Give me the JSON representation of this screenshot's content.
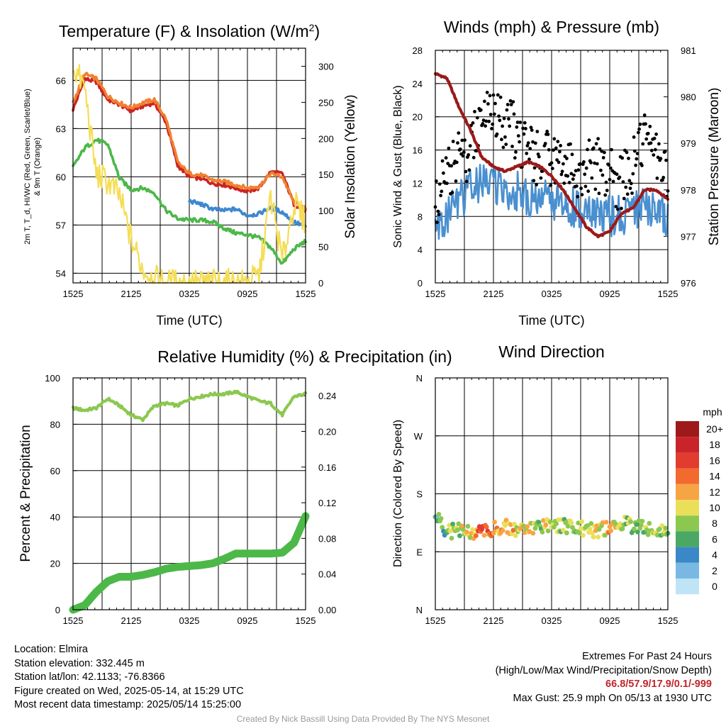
{
  "chart_data": [
    {
      "type": "line",
      "title": "Temperature (F) & Insolation (W/m²)",
      "xlabel": "Time (UTC)",
      "ylabel_lines": [
        "2m T, T_d, HI/WC (Red, Green, Scarlet/Blue)",
        "& 9m T (Orange)"
      ],
      "ylabel2": "Solar Insolation (Yellow)",
      "x_ticks": [
        "1525",
        "2125",
        "0325",
        "0925",
        "1525"
      ],
      "y_ticks": [
        "54",
        "57",
        "60",
        "63",
        "66"
      ],
      "y2_ticks": [
        "0",
        "50",
        "100",
        "150",
        "200",
        "250",
        "300"
      ],
      "ylim": [
        53.4,
        68.0
      ],
      "y2lim": [
        0,
        325
      ],
      "series": [
        {
          "name": "2m T",
          "color": "#cc2222",
          "values": [
            64.2,
            66.1,
            65.9,
            64.8,
            64.5,
            64.1,
            64.4,
            64.6,
            63.4,
            60.7,
            60.0,
            59.9,
            59.6,
            59.5,
            59.3,
            59.1,
            59.3,
            60.3,
            60.2,
            58.3,
            57.9
          ]
        },
        {
          "name": "9m T",
          "color": "#f08030",
          "values": [
            64.6,
            66.4,
            66.1,
            65.0,
            64.6,
            64.3,
            64.6,
            64.8,
            63.6,
            60.9,
            60.2,
            60.1,
            59.8,
            59.7,
            59.5,
            59.3,
            59.4,
            60.2,
            60.0,
            58.4,
            58.0
          ]
        },
        {
          "name": "Dew Point",
          "color": "#4cb848",
          "values": [
            60.6,
            61.8,
            62.3,
            62.0,
            59.9,
            59.2,
            59.3,
            59.0,
            57.9,
            57.4,
            57.3,
            57.3,
            57.2,
            56.8,
            56.5,
            56.4,
            56.2,
            55.6,
            54.6,
            55.5,
            56.0
          ]
        },
        {
          "name": "Wind Chill",
          "color": "#3d88d0",
          "values": [
            null,
            null,
            null,
            null,
            null,
            null,
            null,
            null,
            null,
            null,
            58.5,
            58.3,
            58.0,
            57.9,
            58.0,
            57.6,
            57.7,
            58.1,
            57.8,
            57.2,
            56.9
          ]
        },
        {
          "name": "Solar Insolation",
          "color": "#f5dd55",
          "axis": "right",
          "values": [
            300,
            270,
            150,
            140,
            120,
            60,
            20,
            5,
            0,
            0,
            0,
            0,
            0,
            0,
            0,
            0,
            10,
            120,
            30,
            110,
            85
          ]
        }
      ]
    },
    {
      "type": "line",
      "title": "Winds (mph) & Pressure (mb)",
      "xlabel": "Time (UTC)",
      "ylabel": "Sonic Wind & Gust (Blue, Black)",
      "ylabel2": "Station Pressure (Maroon)",
      "x_ticks": [
        "1525",
        "2125",
        "0325",
        "0925",
        "1525"
      ],
      "y_ticks": [
        "0",
        "4",
        "8",
        "12",
        "16",
        "20",
        "24",
        "28"
      ],
      "y2_ticks": [
        "976",
        "977",
        "978",
        "979",
        "980",
        "981"
      ],
      "ylim": [
        0,
        28
      ],
      "y2lim": [
        976,
        981
      ],
      "series": [
        {
          "name": "Sonic Wind",
          "color": "#4a90d0",
          "values": [
            6,
            8,
            10,
            11,
            12,
            12,
            11,
            11,
            10,
            10,
            10,
            9,
            9,
            8,
            8,
            8,
            8,
            9,
            9,
            9,
            8
          ]
        },
        {
          "name": "Gust",
          "color": "#000000",
          "marker": "dot",
          "values": [
            8.5,
            13,
            15,
            16,
            20,
            21,
            19,
            18,
            16,
            15,
            15,
            14,
            13,
            14,
            14,
            13,
            12,
            14,
            17,
            16,
            12
          ]
        },
        {
          "name": "Station Pressure",
          "color": "#9a1a1a",
          "axis": "right",
          "values": [
            980.5,
            980.4,
            979.8,
            979.3,
            978.7,
            978.5,
            978.4,
            978.5,
            978.6,
            978.5,
            978.3,
            978.0,
            977.6,
            977.2,
            977.0,
            977.1,
            977.5,
            977.6,
            978.0,
            978.0,
            977.8
          ]
        }
      ]
    },
    {
      "type": "line",
      "title": "Relative Humidity (%) & Precipitation (in)",
      "ylabel": "Percent & Precipitation",
      "x_ticks": [
        "1525",
        "2125",
        "0325",
        "0925",
        "1525"
      ],
      "y_ticks": [
        "0",
        "20",
        "40",
        "60",
        "80",
        "100"
      ],
      "y2_ticks": [
        "0.00",
        "0.04",
        "0.08",
        "0.12",
        "0.16",
        "0.20",
        "0.24"
      ],
      "ylim": [
        0,
        100
      ],
      "y2lim": [
        0,
        0.26
      ],
      "series": [
        {
          "name": "Relative Humidity",
          "color": "#8cc850",
          "values": [
            87,
            86,
            87,
            91,
            88,
            84,
            82,
            88,
            89,
            88,
            91,
            92,
            93,
            93,
            94,
            92,
            90,
            89,
            84,
            92,
            93
          ]
        },
        {
          "name": "Precipitation",
          "color": "#4cb848",
          "axis": "right",
          "values": [
            0.0,
            0.005,
            0.02,
            0.032,
            0.037,
            0.037,
            0.039,
            0.042,
            0.046,
            0.048,
            0.049,
            0.05,
            0.052,
            0.057,
            0.063,
            0.063,
            0.063,
            0.063,
            0.064,
            0.075,
            0.105
          ]
        }
      ]
    },
    {
      "type": "scatter",
      "title": "Wind Direction",
      "ylabel": "Direction (Colored By Speed)",
      "x_ticks": [
        "1525",
        "2125",
        "0325",
        "0925",
        "1525"
      ],
      "y_ticks": [
        "N",
        "E",
        "S",
        "W",
        "N"
      ],
      "ylim": [
        0,
        360
      ],
      "legend_title": "mph",
      "legend_labels": [
        "20+",
        "18",
        "16",
        "14",
        "12",
        "10",
        "8",
        "6",
        "4",
        "2",
        "0"
      ],
      "legend_colors": [
        "#9e1a1a",
        "#c8242a",
        "#e23b30",
        "#f26a2e",
        "#f7a445",
        "#ebdf5a",
        "#8cc850",
        "#4aa864",
        "#3a88c8",
        "#7ab8e4",
        "#bfe4f6"
      ],
      "direction_values": [
        145,
        120,
        125,
        118,
        120,
        125,
        130,
        122,
        125,
        128,
        132,
        130,
        128,
        125,
        122,
        128,
        135,
        130,
        128,
        124,
        120
      ],
      "speed_values": [
        4,
        8,
        9,
        10,
        15,
        13,
        12,
        10,
        11,
        9,
        10,
        8,
        9,
        8,
        10,
        11,
        9,
        7,
        8,
        10,
        6
      ]
    }
  ],
  "info": {
    "location": "Location: Elmira",
    "elevation": "Station elevation: 332.445 m",
    "latlon": "Station lat/lon: 42.1133; -76.8366",
    "created": "Figure created on Wed, 2025-05-14, at 15:29 UTC",
    "recent": "Most recent data timestamp: 2025/05/14 15:25:00"
  },
  "extremes": {
    "title": "Extremes For Past 24 Hours",
    "subtitle": "(High/Low/Max Wind/Precipitation/Snow Depth)",
    "values": "66.8/57.9/17.9/0.1/-999",
    "gust": "Max Gust: 25.9 mph On 05/13 at 1930 UTC"
  },
  "credit": "Created By Nick Bassill Using Data Provided By The NYS Mesonet"
}
